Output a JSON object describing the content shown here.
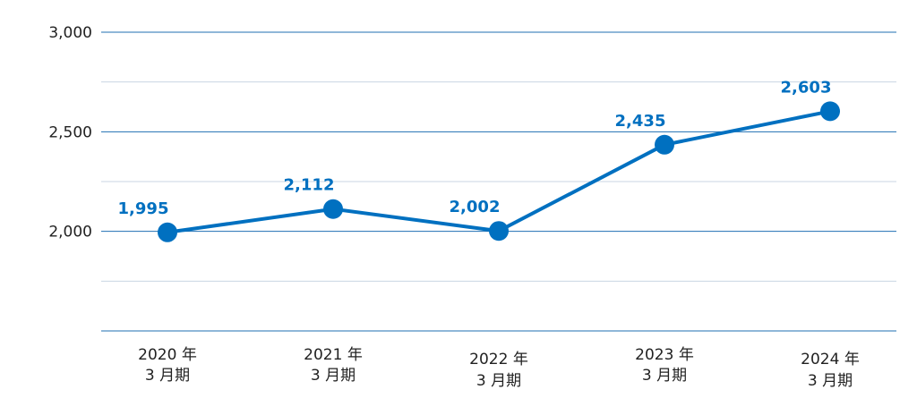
{
  "chart_data": {
    "type": "line",
    "categories": [
      [
        "2020 年",
        "3 月期"
      ],
      [
        "2021 年",
        "3 月期"
      ],
      [
        "2022 年",
        "3 月期"
      ],
      [
        "2023 年",
        "3 月期"
      ],
      [
        "2024 年",
        "3 月期"
      ]
    ],
    "series": [
      {
        "values": [
          1995,
          2112,
          2002,
          2435,
          2603
        ],
        "color": "#0070c0"
      }
    ],
    "data_labels": [
      "1,995",
      "2,112",
      "2,002",
      "2,435",
      "2,603"
    ],
    "y_ticks": [
      {
        "value": 2000,
        "label": "2,000"
      },
      {
        "value": 2500,
        "label": "2,500"
      },
      {
        "value": 3000,
        "label": "3,000"
      }
    ],
    "ylim": [
      1500,
      3000
    ],
    "grid": true,
    "colors": {
      "major_grid": "#1f6fb2",
      "minor_grid": "#c9d6e3",
      "line": "#0070c0"
    }
  }
}
